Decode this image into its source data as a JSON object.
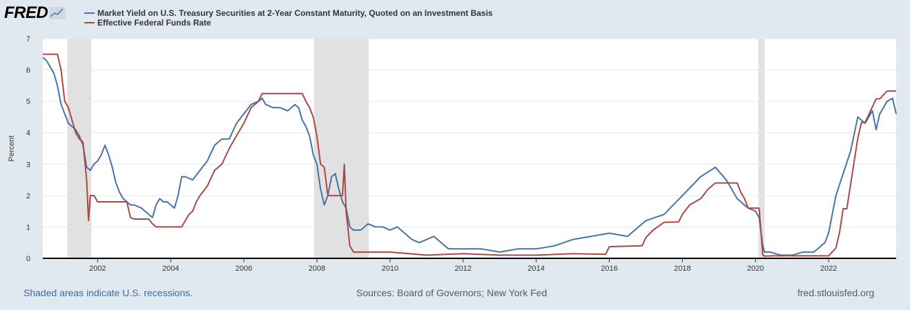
{
  "logo": {
    "text": "FRED",
    "icon": "chart-line-icon"
  },
  "legend": [
    {
      "label": "Market Yield on U.S. Treasury Securities at 2-Year Constant Maturity, Quoted on an Investment Basis",
      "color": "#4572a7"
    },
    {
      "label": "Effective Federal Funds Rate",
      "color": "#aa4643"
    }
  ],
  "footer": {
    "recessions_note": "Shaded areas indicate U.S. recessions.",
    "sources": "Sources: Board of Governors; New York Fed",
    "site": "fred.stlouisfed.org"
  },
  "chart_data": {
    "type": "line",
    "ylabel": "Percent",
    "ylim": [
      0,
      7
    ],
    "yticks": [
      0,
      1,
      2,
      3,
      4,
      5,
      6,
      7
    ],
    "xlim": [
      2000.5,
      2023.85
    ],
    "xticks": [
      2002,
      2004,
      2006,
      2008,
      2010,
      2012,
      2014,
      2016,
      2018,
      2020,
      2022
    ],
    "recessions": [
      [
        2001.17,
        2001.83
      ],
      [
        2007.92,
        2009.42
      ],
      [
        2020.08,
        2020.25
      ]
    ],
    "grid": true,
    "legend_position": "top-left",
    "series": [
      {
        "name": "Market Yield on U.S. Treasury Securities at 2-Year Constant Maturity, Quoted on an Investment Basis",
        "color": "#4572a7",
        "x": [
          2000.5,
          2000.6,
          2000.7,
          2000.8,
          2000.9,
          2000.95,
          2001.0,
          2001.1,
          2001.2,
          2001.3,
          2001.4,
          2001.5,
          2001.6,
          2001.7,
          2001.8,
          2001.9,
          2002.0,
          2002.1,
          2002.2,
          2002.3,
          2002.4,
          2002.5,
          2002.6,
          2002.7,
          2002.8,
          2002.9,
          2003.0,
          2003.2,
          2003.4,
          2003.5,
          2003.6,
          2003.7,
          2003.8,
          2003.9,
          2004.0,
          2004.1,
          2004.2,
          2004.3,
          2004.4,
          2004.6,
          2004.8,
          2005.0,
          2005.2,
          2005.4,
          2005.6,
          2005.8,
          2006.0,
          2006.2,
          2006.4,
          2006.5,
          2006.6,
          2006.8,
          2007.0,
          2007.2,
          2007.4,
          2007.5,
          2007.6,
          2007.7,
          2007.8,
          2007.9,
          2008.0,
          2008.1,
          2008.2,
          2008.3,
          2008.4,
          2008.5,
          2008.6,
          2008.7,
          2008.8,
          2008.9,
          2009.0,
          2009.2,
          2009.4,
          2009.6,
          2009.8,
          2010.0,
          2010.2,
          2010.4,
          2010.6,
          2010.8,
          2011.0,
          2011.2,
          2011.4,
          2011.6,
          2011.8,
          2012.0,
          2012.5,
          2013.0,
          2013.5,
          2014.0,
          2014.5,
          2015.0,
          2015.5,
          2016.0,
          2016.5,
          2017.0,
          2017.5,
          2018.0,
          2018.5,
          2018.9,
          2019.2,
          2019.5,
          2019.8,
          2020.0,
          2020.1,
          2020.2,
          2020.25,
          2020.4,
          2020.7,
          2021.0,
          2021.3,
          2021.6,
          2021.9,
          2022.0,
          2022.2,
          2022.4,
          2022.6,
          2022.8,
          2023.0,
          2023.2,
          2023.3,
          2023.4,
          2023.6,
          2023.75,
          2023.85
        ],
        "values": [
          6.4,
          6.3,
          6.1,
          5.9,
          5.5,
          5.2,
          4.9,
          4.6,
          4.3,
          4.2,
          4.1,
          3.9,
          3.6,
          2.9,
          2.8,
          3.0,
          3.1,
          3.3,
          3.6,
          3.3,
          2.9,
          2.4,
          2.1,
          1.9,
          1.8,
          1.7,
          1.7,
          1.6,
          1.4,
          1.3,
          1.7,
          1.9,
          1.8,
          1.8,
          1.7,
          1.6,
          2.0,
          2.6,
          2.6,
          2.5,
          2.8,
          3.1,
          3.6,
          3.8,
          3.8,
          4.3,
          4.6,
          4.9,
          5.0,
          5.1,
          4.9,
          4.8,
          4.8,
          4.7,
          4.9,
          4.8,
          4.4,
          4.2,
          3.9,
          3.3,
          3.0,
          2.2,
          1.7,
          2.0,
          2.6,
          2.7,
          2.2,
          1.8,
          1.6,
          1.0,
          0.9,
          0.9,
          1.1,
          1.0,
          1.0,
          0.9,
          1.0,
          0.8,
          0.6,
          0.5,
          0.6,
          0.7,
          0.5,
          0.3,
          0.3,
          0.3,
          0.3,
          0.2,
          0.3,
          0.3,
          0.4,
          0.6,
          0.7,
          0.8,
          0.7,
          1.2,
          1.4,
          2.0,
          2.6,
          2.9,
          2.5,
          1.9,
          1.6,
          1.5,
          1.3,
          0.4,
          0.2,
          0.2,
          0.1,
          0.1,
          0.2,
          0.2,
          0.5,
          0.8,
          2.0,
          2.7,
          3.4,
          4.5,
          4.3,
          4.7,
          4.1,
          4.6,
          5.0,
          5.1,
          4.6
        ]
      },
      {
        "name": "Effective Federal Funds Rate",
        "color": "#aa4643",
        "x": [
          2000.5,
          2000.7,
          2000.9,
          2001.0,
          2001.05,
          2001.1,
          2001.2,
          2001.3,
          2001.4,
          2001.5,
          2001.6,
          2001.7,
          2001.75,
          2001.8,
          2001.9,
          2002.0,
          2002.2,
          2002.4,
          2002.6,
          2002.8,
          2002.9,
          2003.0,
          2003.2,
          2003.4,
          2003.5,
          2003.6,
          2003.8,
          2004.0,
          2004.3,
          2004.5,
          2004.6,
          2004.7,
          2004.8,
          2005.0,
          2005.2,
          2005.4,
          2005.6,
          2005.8,
          2006.0,
          2006.2,
          2006.4,
          2006.5,
          2006.8,
          2007.0,
          2007.4,
          2007.6,
          2007.7,
          2007.8,
          2007.9,
          2008.0,
          2008.1,
          2008.2,
          2008.3,
          2008.5,
          2008.7,
          2008.75,
          2008.8,
          2008.9,
          2009.0,
          2009.5,
          2010.0,
          2011.0,
          2012.0,
          2013.0,
          2014.0,
          2015.0,
          2015.9,
          2016.0,
          2016.9,
          2017.0,
          2017.2,
          2017.5,
          2017.9,
          2018.0,
          2018.2,
          2018.5,
          2018.7,
          2018.9,
          2019.0,
          2019.5,
          2019.6,
          2019.7,
          2019.8,
          2020.0,
          2020.1,
          2020.2,
          2020.25,
          2020.5,
          2021.0,
          2021.5,
          2022.0,
          2022.2,
          2022.3,
          2022.4,
          2022.5,
          2022.6,
          2022.7,
          2022.8,
          2022.9,
          2023.0,
          2023.1,
          2023.2,
          2023.3,
          2023.4,
          2023.6,
          2023.85
        ],
        "values": [
          6.5,
          6.5,
          6.5,
          6.0,
          5.5,
          5.0,
          4.8,
          4.4,
          4.0,
          3.8,
          3.7,
          2.5,
          1.2,
          2.0,
          2.0,
          1.8,
          1.8,
          1.8,
          1.8,
          1.8,
          1.3,
          1.25,
          1.25,
          1.25,
          1.1,
          1.0,
          1.0,
          1.0,
          1.0,
          1.4,
          1.5,
          1.8,
          2.0,
          2.3,
          2.8,
          3.0,
          3.5,
          3.9,
          4.3,
          4.8,
          5.0,
          5.25,
          5.25,
          5.25,
          5.25,
          5.25,
          5.0,
          4.8,
          4.5,
          3.9,
          3.0,
          2.9,
          2.0,
          2.0,
          2.0,
          3.0,
          1.5,
          0.4,
          0.2,
          0.2,
          0.2,
          0.1,
          0.15,
          0.1,
          0.1,
          0.15,
          0.13,
          0.37,
          0.4,
          0.66,
          0.9,
          1.15,
          1.16,
          1.4,
          1.7,
          1.9,
          2.2,
          2.4,
          2.4,
          2.4,
          2.1,
          1.9,
          1.6,
          1.6,
          1.6,
          0.1,
          0.07,
          0.08,
          0.08,
          0.08,
          0.08,
          0.33,
          0.83,
          1.58,
          1.58,
          2.33,
          3.08,
          3.83,
          4.33,
          4.33,
          4.58,
          4.83,
          5.08,
          5.08,
          5.33,
          5.33
        ]
      }
    ]
  }
}
